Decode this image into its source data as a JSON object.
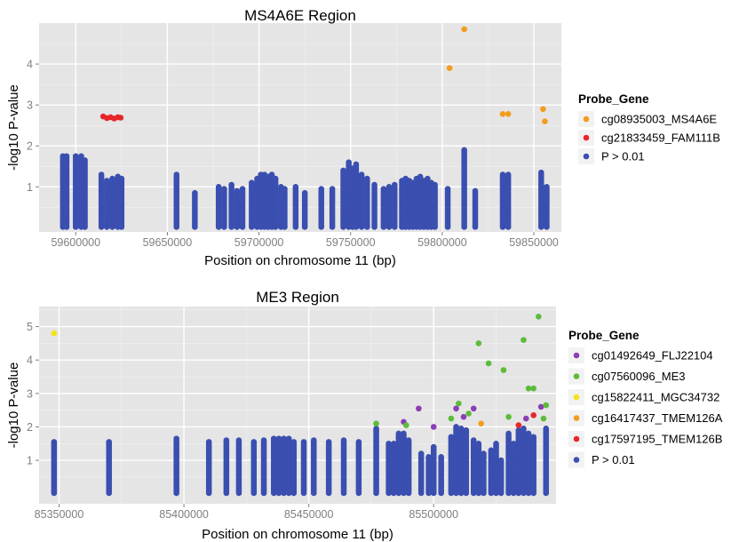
{
  "chart_data": [
    {
      "type": "scatter",
      "title": "MS4A6E Region",
      "xlabel": "Position on chromosome 11 (bp)",
      "ylabel": "-log10 P-value",
      "xlim": [
        59580000,
        59865000
      ],
      "ylim": [
        -0.1,
        5.0
      ],
      "xticks": [
        59600000,
        59650000,
        59700000,
        59750000,
        59800000,
        59850000
      ],
      "yticks": [
        1,
        2,
        3,
        4
      ],
      "grid": true,
      "legend_title": "Probe_Gene",
      "legend_position": "right",
      "series": [
        {
          "name": "cg08935003_MS4A6E",
          "color": "#f39c1e",
          "points": [
            [
              59804000,
              3.9
            ],
            [
              59812000,
              4.85
            ],
            [
              59833000,
              2.78
            ],
            [
              59836000,
              2.78
            ],
            [
              59855000,
              2.9
            ],
            [
              59856000,
              2.6
            ]
          ]
        },
        {
          "name": "cg21833459_FAM111B",
          "color": "#e8262a",
          "points": [
            [
              59615000,
              2.72
            ],
            [
              59617000,
              2.68
            ],
            [
              59619000,
              2.7
            ],
            [
              59621000,
              2.67
            ],
            [
              59623000,
              2.7
            ],
            [
              59624500,
              2.69
            ]
          ]
        },
        {
          "name": "P > 0.01",
          "color": "#3a4fb0",
          "columns": [
            [
              59593000,
              1.75
            ],
            [
              59595000,
              1.75
            ],
            [
              59600000,
              1.75
            ],
            [
              59603000,
              1.75
            ],
            [
              59605000,
              1.65
            ],
            [
              59614000,
              1.3
            ],
            [
              59617000,
              1.15
            ],
            [
              59620000,
              1.2
            ],
            [
              59623000,
              1.25
            ],
            [
              59625000,
              1.2
            ],
            [
              59655000,
              1.3
            ],
            [
              59665000,
              0.85
            ],
            [
              59678000,
              1.0
            ],
            [
              59681000,
              0.95
            ],
            [
              59685000,
              1.05
            ],
            [
              59688000,
              0.9
            ],
            [
              59691000,
              0.95
            ],
            [
              59696000,
              1.1
            ],
            [
              59699000,
              1.2
            ],
            [
              59701000,
              1.3
            ],
            [
              59703000,
              1.3
            ],
            [
              59705000,
              1.25
            ],
            [
              59707000,
              1.3
            ],
            [
              59709000,
              1.2
            ],
            [
              59712000,
              1.0
            ],
            [
              59714000,
              0.95
            ],
            [
              59720000,
              1.0
            ],
            [
              59725000,
              0.85
            ],
            [
              59734000,
              0.95
            ],
            [
              59740000,
              0.95
            ],
            [
              59746000,
              1.4
            ],
            [
              59749000,
              1.6
            ],
            [
              59751000,
              1.45
            ],
            [
              59753000,
              1.55
            ],
            [
              59756000,
              1.3
            ],
            [
              59759000,
              1.2
            ],
            [
              59763000,
              1.05
            ],
            [
              59768000,
              0.95
            ],
            [
              59771000,
              1.0
            ],
            [
              59774000,
              1.05
            ],
            [
              59778000,
              1.15
            ],
            [
              59780000,
              1.2
            ],
            [
              59782000,
              1.15
            ],
            [
              59784000,
              1.1
            ],
            [
              59786000,
              1.2
            ],
            [
              59788000,
              1.25
            ],
            [
              59790000,
              1.15
            ],
            [
              59792000,
              1.2
            ],
            [
              59794000,
              1.1
            ],
            [
              59796000,
              1.05
            ],
            [
              59803000,
              0.95
            ],
            [
              59812000,
              1.9
            ],
            [
              59818000,
              0.9
            ],
            [
              59833000,
              1.3
            ],
            [
              59836000,
              1.3
            ],
            [
              59854000,
              1.35
            ],
            [
              59857000,
              1.0
            ]
          ]
        }
      ]
    },
    {
      "type": "scatter",
      "title": "ME3 Region",
      "xlabel": "Position on chromosome 11 (bp)",
      "ylabel": "-log10 P-value",
      "xlim": [
        85342000,
        85549000
      ],
      "ylim": [
        -0.3,
        5.6
      ],
      "xticks": [
        85350000,
        85400000,
        85450000,
        85500000
      ],
      "yticks": [
        1,
        2,
        3,
        4,
        5
      ],
      "grid": true,
      "legend_title": "Probe_Gene",
      "legend_position": "right",
      "series": [
        {
          "name": "cg01492649_FLJ22104",
          "color": "#8a3fb3",
          "points": [
            [
              85488000,
              2.15
            ],
            [
              85494000,
              2.55
            ],
            [
              85500000,
              2.0
            ],
            [
              85509000,
              2.55
            ],
            [
              85512000,
              2.3
            ],
            [
              85516000,
              2.55
            ],
            [
              85537000,
              2.25
            ],
            [
              85543000,
              2.6
            ]
          ]
        },
        {
          "name": "cg07560096_ME3",
          "color": "#5dbb3a",
          "points": [
            [
              85477000,
              2.1
            ],
            [
              85489000,
              2.05
            ],
            [
              85507000,
              2.25
            ],
            [
              85510000,
              2.7
            ],
            [
              85514000,
              2.4
            ],
            [
              85518000,
              4.5
            ],
            [
              85522000,
              3.9
            ],
            [
              85528000,
              3.7
            ],
            [
              85530000,
              2.3
            ],
            [
              85536000,
              4.6
            ],
            [
              85538000,
              3.15
            ],
            [
              85540000,
              3.15
            ],
            [
              85542000,
              5.3
            ],
            [
              85544000,
              2.25
            ],
            [
              85545000,
              2.65
            ]
          ]
        },
        {
          "name": "cg15822411_MGC34732",
          "color": "#f2e41a",
          "points": [
            [
              85348000,
              4.8
            ]
          ]
        },
        {
          "name": "cg16417437_TMEM126A",
          "color": "#f39c1e",
          "points": [
            [
              85519000,
              2.1
            ]
          ]
        },
        {
          "name": "cg17597195_TMEM126B",
          "color": "#e8262a",
          "points": [
            [
              85534000,
              2.05
            ],
            [
              85540000,
              2.35
            ]
          ]
        },
        {
          "name": "P > 0.01",
          "color": "#3a4fb0",
          "columns": [
            [
              85348000,
              1.55
            ],
            [
              85370000,
              1.55
            ],
            [
              85397000,
              1.65
            ],
            [
              85410000,
              1.55
            ],
            [
              85417000,
              1.6
            ],
            [
              85422000,
              1.6
            ],
            [
              85428000,
              1.55
            ],
            [
              85432000,
              1.6
            ],
            [
              85436000,
              1.65
            ],
            [
              85438000,
              1.65
            ],
            [
              85440000,
              1.65
            ],
            [
              85442000,
              1.65
            ],
            [
              85444000,
              1.55
            ],
            [
              85448000,
              1.55
            ],
            [
              85452000,
              1.6
            ],
            [
              85458000,
              1.55
            ],
            [
              85464000,
              1.6
            ],
            [
              85470000,
              1.55
            ],
            [
              85477000,
              1.95
            ],
            [
              85482000,
              1.5
            ],
            [
              85484000,
              1.5
            ],
            [
              85486000,
              1.8
            ],
            [
              85488000,
              1.8
            ],
            [
              85490000,
              1.6
            ],
            [
              85495000,
              1.2
            ],
            [
              85498000,
              1.1
            ],
            [
              85500000,
              1.4
            ],
            [
              85503000,
              1.1
            ],
            [
              85507000,
              1.7
            ],
            [
              85509000,
              2.0
            ],
            [
              85511000,
              1.95
            ],
            [
              85513000,
              1.9
            ],
            [
              85516000,
              1.6
            ],
            [
              85518000,
              1.5
            ],
            [
              85520000,
              1.2
            ],
            [
              85523000,
              1.3
            ],
            [
              85525000,
              1.5
            ],
            [
              85527000,
              1.0
            ],
            [
              85530000,
              1.8
            ],
            [
              85532000,
              1.5
            ],
            [
              85534000,
              1.9
            ],
            [
              85536000,
              1.95
            ],
            [
              85538000,
              1.8
            ],
            [
              85540000,
              1.7
            ],
            [
              85545000,
              1.95
            ]
          ]
        }
      ]
    }
  ]
}
